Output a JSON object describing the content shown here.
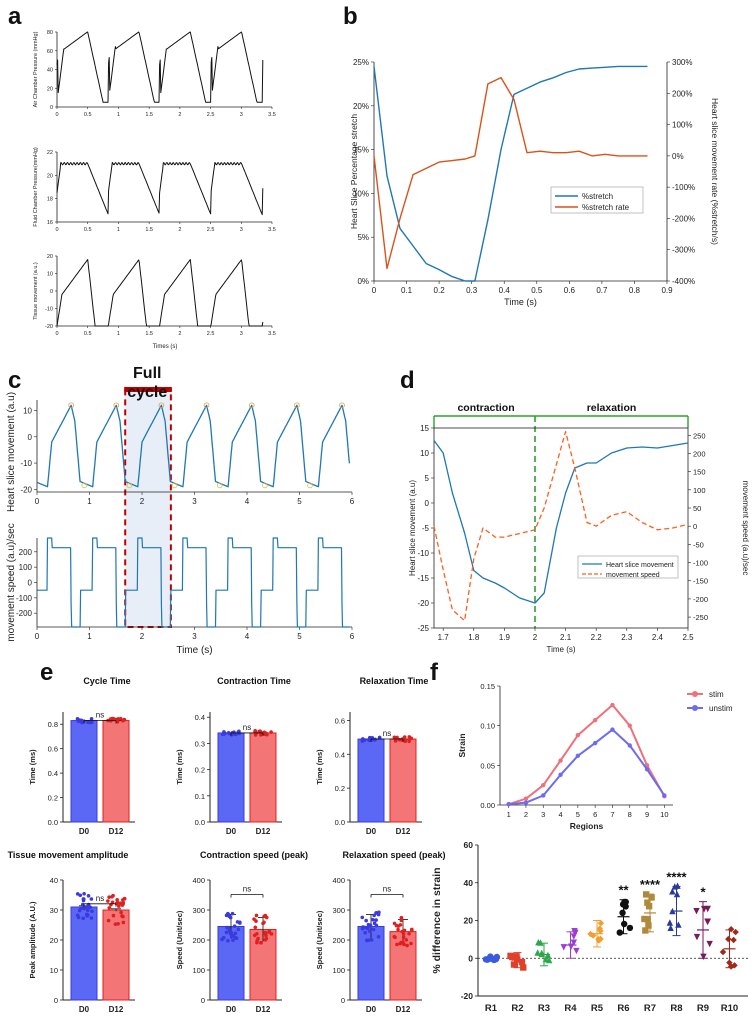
{
  "panels": {
    "a": {
      "label": "a",
      "charts": [
        {
          "ylabel": "Air Chamber Pressure (mmHg)",
          "yticks": [
            "0",
            "20",
            "40",
            "60",
            "80"
          ]
        },
        {
          "ylabel": "Fluid Chamber Pressure(mmHg)",
          "yticks": [
            "16",
            "18",
            "20",
            "22"
          ]
        },
        {
          "ylabel": "Tissue movement (a.u.)",
          "yticks": [
            "-20",
            "-10",
            "0",
            "10",
            "20"
          ]
        }
      ],
      "xticks": [
        "0",
        "0.5",
        "1",
        "1.5",
        "2",
        "2.5",
        "3",
        "3.5"
      ],
      "xlabel": "Times (s)"
    },
    "b": {
      "label": "b",
      "ylabel_left": "Heart Slice Percentage stretch",
      "ylabel_right": "Heart slice movement rate (%stretch/s)",
      "xlabel": "Time (s)",
      "yticks_left": [
        "0%",
        "5%",
        "10%",
        "15%",
        "20%",
        "25%"
      ],
      "yticks_right": [
        "-400%",
        "-300%",
        "-200%",
        "-100%",
        "0%",
        "100%",
        "200%",
        "300%"
      ],
      "xticks": [
        "0",
        "0.1",
        "0.2",
        "0.3",
        "0.4",
        "0.5",
        "0.6",
        "0.7",
        "0.8",
        "0.9"
      ],
      "legend": [
        "%stretch",
        "%stretch rate"
      ]
    },
    "c": {
      "label": "c",
      "annotation": "Full cycle",
      "ylabel_top": "Heart slice movement (a.u)",
      "ylabel_bottom": "movement speed (a.u)/sec",
      "yticks_top": [
        "-20",
        "-10",
        "0",
        "10"
      ],
      "yticks_bottom": [
        "-200",
        "-100",
        "0",
        "100",
        "200"
      ],
      "xticks": [
        "0",
        "1",
        "2",
        "3",
        "4",
        "5",
        "6"
      ],
      "xlabel": "Time (s)"
    },
    "d": {
      "label": "d",
      "phase_left": "contraction",
      "phase_right": "relaxation",
      "ylabel_left": "Heart slice movement (a.u)",
      "ylabel_right": "movement speed (a.u)/sec",
      "yticks_left": [
        "-25",
        "-20",
        "-15",
        "-10",
        "-5",
        "0",
        "5",
        "10",
        "15"
      ],
      "yticks_right": [
        "-250",
        "-200",
        "-150",
        "-100",
        "-50",
        "0",
        "50",
        "100",
        "150",
        "200",
        "250"
      ],
      "xticks": [
        "1.7",
        "1.8",
        "1.9",
        "2",
        "2.1",
        "2.2",
        "2.3",
        "2.4",
        "2.5"
      ],
      "xlabel": "Time (s)",
      "legend": [
        "Heart slice movement",
        "movement speed"
      ]
    },
    "e": {
      "label": "e",
      "plots": [
        {
          "title": "Cycle Time",
          "ylabel": "Time (ms)",
          "yticks": [
            "0.0",
            "0.2",
            "0.4",
            "0.6",
            "0.8"
          ],
          "ymax": 0.9,
          "values": [
            0.83,
            0.83
          ],
          "sig": "ns"
        },
        {
          "title": "Contraction Time",
          "ylabel": "Time (ms)",
          "yticks": [
            "0.0",
            "0.1",
            "0.2",
            "0.3",
            "0.4"
          ],
          "ymax": 0.42,
          "values": [
            0.34,
            0.34
          ],
          "sig": "ns"
        },
        {
          "title": "Relaxation Time",
          "ylabel": "Time (ms)",
          "yticks": [
            "0.0",
            "0.2",
            "0.4",
            "0.6"
          ],
          "ymax": 0.65,
          "values": [
            0.49,
            0.49
          ],
          "sig": "ns"
        },
        {
          "title": "Tissue movement amplitude",
          "ylabel": "Peak amplitude (A.U.)",
          "yticks": [
            "0",
            "10",
            "20",
            "30",
            "40"
          ],
          "ymax": 40,
          "values": [
            31,
            30
          ],
          "sig": "ns"
        },
        {
          "title": "Contraction speed (peak)",
          "ylabel": "Speed (Unit/sec)",
          "yticks": [
            "0",
            "100",
            "200",
            "300",
            "400"
          ],
          "ymax": 400,
          "values": [
            245,
            235
          ],
          "sig": "ns"
        },
        {
          "title": "Relaxation speed (peak)",
          "ylabel": "Speed (Unit/sec)",
          "yticks": [
            "0",
            "100",
            "200",
            "300",
            "400"
          ],
          "ymax": 400,
          "values": [
            245,
            228
          ],
          "sig": "ns"
        }
      ],
      "groups": [
        "D0",
        "D12"
      ]
    },
    "f": {
      "label": "f",
      "top": {
        "ylabel": "Strain",
        "xlabel": "Regions",
        "yticks": [
          "0.00",
          "0.05",
          "0.10",
          "0.15"
        ],
        "xticks": [
          "1",
          "2",
          "3",
          "4",
          "5",
          "6",
          "7",
          "8",
          "9",
          "10"
        ],
        "legend": [
          "stim",
          "unstim"
        ]
      },
      "bottom": {
        "ylabel": "% difference in strain",
        "yticks": [
          "-20",
          "0",
          "20",
          "40",
          "60"
        ],
        "regions": [
          "R1",
          "R2",
          "R3",
          "R4",
          "R5",
          "R6",
          "R7",
          "R8",
          "R9",
          "R10"
        ],
        "stars": [
          "",
          "",
          "",
          "",
          "",
          "**",
          "****",
          "****",
          "*",
          ""
        ]
      }
    }
  },
  "chart_data": [
    {
      "type": "line",
      "panel": "b",
      "title": "",
      "xlabel": "Time (s)",
      "ylabel": "Heart Slice Percentage stretch",
      "ylim": [
        0,
        25
      ],
      "y2lim": [
        -400,
        300
      ],
      "series": [
        {
          "name": "%stretch",
          "axis": "left",
          "x": [
            0,
            0.04,
            0.08,
            0.12,
            0.16,
            0.2,
            0.24,
            0.28,
            0.31,
            0.35,
            0.39,
            0.43,
            0.47,
            0.51,
            0.55,
            0.59,
            0.63,
            0.67,
            0.71,
            0.75,
            0.79,
            0.84
          ],
          "values": [
            24.5,
            12,
            6,
            4,
            2,
            1.3,
            0.5,
            0,
            0,
            7,
            15,
            21.3,
            22,
            22.7,
            23.2,
            23.8,
            24.2,
            24.3,
            24.4,
            24.5,
            24.5,
            24.5
          ]
        },
        {
          "name": "%stretch rate",
          "axis": "right",
          "x": [
            0,
            0.04,
            0.08,
            0.12,
            0.16,
            0.2,
            0.24,
            0.28,
            0.31,
            0.35,
            0.39,
            0.43,
            0.47,
            0.51,
            0.55,
            0.59,
            0.63,
            0.67,
            0.71,
            0.75,
            0.79,
            0.84
          ],
          "values": [
            0,
            -360,
            -200,
            -60,
            -40,
            -20,
            -15,
            -10,
            0,
            230,
            250,
            180,
            10,
            15,
            10,
            10,
            15,
            0,
            5,
            0,
            0,
            0
          ]
        }
      ]
    },
    {
      "type": "line",
      "panel": "d",
      "title": "",
      "xlabel": "Time (s)",
      "ylabel": "Heart slice movement (a.u)",
      "ylim": [
        -25,
        15
      ],
      "y2lim": [
        -280,
        270
      ],
      "series": [
        {
          "name": "Heart slice movement",
          "axis": "left",
          "x": [
            1.67,
            1.7,
            1.73,
            1.77,
            1.8,
            1.83,
            1.87,
            1.9,
            1.95,
            2.0,
            2.03,
            2.07,
            2.1,
            2.13,
            2.17,
            2.2,
            2.25,
            2.3,
            2.35,
            2.4,
            2.45,
            2.5
          ],
          "values": [
            12.5,
            10,
            2,
            -6,
            -13.5,
            -15,
            -16,
            -17,
            -19,
            -20,
            -18,
            -5,
            2,
            7,
            8,
            8,
            10,
            11,
            11.2,
            11,
            11.5,
            12
          ]
        },
        {
          "name": "movement speed",
          "axis": "right",
          "x": [
            1.67,
            1.7,
            1.73,
            1.77,
            1.8,
            1.83,
            1.87,
            1.9,
            1.95,
            2.0,
            2.03,
            2.07,
            2.1,
            2.13,
            2.17,
            2.2,
            2.25,
            2.3,
            2.35,
            2.4,
            2.45,
            2.5
          ],
          "values": [
            0,
            -120,
            -230,
            -260,
            -90,
            -5,
            -30,
            -30,
            -20,
            -10,
            50,
            170,
            260,
            160,
            10,
            0,
            30,
            40,
            10,
            -10,
            -5,
            5
          ]
        }
      ]
    },
    {
      "type": "line",
      "panel": "f-top",
      "title": "",
      "xlabel": "Regions",
      "ylabel": "Strain",
      "ylim": [
        0,
        0.15
      ],
      "categories": [
        "1",
        "2",
        "3",
        "4",
        "5",
        "6",
        "7",
        "8",
        "9",
        "10"
      ],
      "series": [
        {
          "name": "stim",
          "values": [
            0.001,
            0.008,
            0.025,
            0.056,
            0.088,
            0.107,
            0.126,
            0.1,
            0.05,
            0.011
          ]
        },
        {
          "name": "unstim",
          "values": [
            0.001,
            0.003,
            0.012,
            0.038,
            0.062,
            0.078,
            0.095,
            0.075,
            0.045,
            0.012
          ]
        }
      ]
    },
    {
      "type": "scatter",
      "panel": "f-bottom",
      "title": "",
      "xlabel": "",
      "ylabel": "% difference in strain",
      "ylim": [
        -20,
        60
      ],
      "categories": [
        "R1",
        "R2",
        "R3",
        "R4",
        "R5",
        "R6",
        "R7",
        "R8",
        "R9",
        "R10"
      ],
      "series": [
        {
          "name": "mean",
          "values": [
            0,
            -1,
            2,
            7,
            13,
            22,
            24,
            25,
            15,
            5
          ]
        },
        {
          "name": "sd",
          "values": [
            1,
            4,
            6,
            7,
            7,
            9,
            10,
            13,
            15,
            10
          ]
        }
      ]
    },
    {
      "type": "bar",
      "panel": "e",
      "title": "Cycle Time",
      "categories": [
        "D0",
        "D12"
      ],
      "values": [
        0.83,
        0.83
      ],
      "ylabel": "Time (ms)",
      "ylim": [
        0,
        0.9
      ]
    },
    {
      "type": "bar",
      "panel": "e",
      "title": "Contraction Time",
      "categories": [
        "D0",
        "D12"
      ],
      "values": [
        0.34,
        0.34
      ],
      "ylabel": "Time (ms)",
      "ylim": [
        0,
        0.42
      ]
    },
    {
      "type": "bar",
      "panel": "e",
      "title": "Relaxation Time",
      "categories": [
        "D0",
        "D12"
      ],
      "values": [
        0.49,
        0.49
      ],
      "ylabel": "Time (ms)",
      "ylim": [
        0,
        0.65
      ]
    },
    {
      "type": "bar",
      "panel": "e",
      "title": "Tissue movement amplitude",
      "categories": [
        "D0",
        "D12"
      ],
      "values": [
        31,
        30
      ],
      "ylabel": "Peak amplitude (A.U.)",
      "ylim": [
        0,
        40
      ]
    },
    {
      "type": "bar",
      "panel": "e",
      "title": "Contraction speed (peak)",
      "categories": [
        "D0",
        "D12"
      ],
      "values": [
        245,
        235
      ],
      "ylabel": "Speed (Unit/sec)",
      "ylim": [
        0,
        400
      ]
    },
    {
      "type": "bar",
      "panel": "e",
      "title": "Relaxation speed (peak)",
      "categories": [
        "D0",
        "D12"
      ],
      "values": [
        245,
        228
      ],
      "ylabel": "Speed (Unit/sec)",
      "ylim": [
        0,
        400
      ]
    }
  ]
}
